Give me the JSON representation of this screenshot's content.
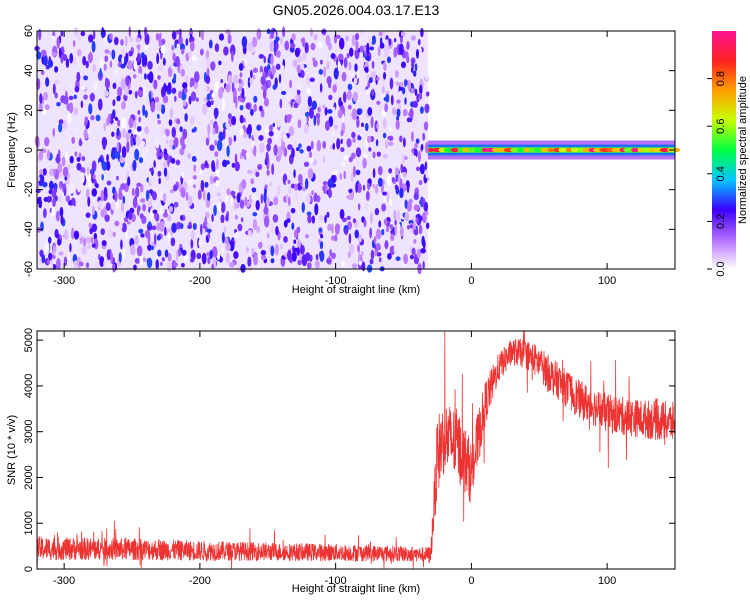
{
  "figure": {
    "title": "GN05.2026.004.03.17.E13"
  },
  "chart_data": [
    {
      "type": "heatmap",
      "title": "GN05.2026.004.03.17.E13",
      "xlabel": "Height of straight line (km)",
      "ylabel": "Frequency (Hz)",
      "xlim": [
        -320,
        150
      ],
      "ylim": [
        -60,
        60
      ],
      "x_ticks": [
        -300,
        -200,
        -100,
        0,
        100
      ],
      "y_ticks": [
        -60,
        -40,
        -20,
        0,
        20,
        40,
        60
      ],
      "colorbar": {
        "label": "Normalized spectral amplitude",
        "range": [
          0,
          1
        ],
        "ticks": [
          0.0,
          0.2,
          0.4,
          0.6,
          0.8
        ],
        "tick_labels": [
          "0.0",
          "0.2",
          "0.4",
          "0.6",
          "0.8"
        ],
        "colors": [
          "#ffffff",
          "#b36bff",
          "#3a00ff",
          "#00c8ff",
          "#00ff40",
          "#c8ff00",
          "#ffa000",
          "#ff2020",
          "#ff1493"
        ]
      },
      "noise_region": {
        "x": [
          -320,
          -32
        ],
        "y": [
          -60,
          60
        ],
        "level": [
          0.0,
          0.3
        ]
      },
      "signal_band": {
        "x": [
          -32,
          150
        ],
        "center_hz": 0,
        "halfwidth_hz": 3,
        "level": [
          0.5,
          1.0
        ]
      }
    },
    {
      "type": "line",
      "xlabel": "Height of straight line (km)",
      "ylabel": "SNR (10 * v/v)",
      "xlim": [
        -320,
        150
      ],
      "ylim": [
        0,
        5200
      ],
      "x_ticks": [
        -300,
        -200,
        -100,
        0,
        100
      ],
      "y_ticks": [
        0,
        1000,
        2000,
        3000,
        4000,
        5000
      ],
      "color": "#ee3333",
      "envelope": {
        "x": [
          -320,
          -250,
          -200,
          -150,
          -100,
          -60,
          -35,
          -30,
          -25,
          -20,
          -10,
          0,
          10,
          20,
          30,
          40,
          50,
          60,
          80,
          100,
          120,
          150
        ],
        "y": [
          450,
          430,
          400,
          380,
          360,
          340,
          320,
          300,
          2500,
          2900,
          2700,
          2100,
          3600,
          4400,
          4750,
          4700,
          4500,
          4200,
          3700,
          3400,
          3300,
          3200
        ],
        "noise_amplitude": [
          260,
          240,
          220,
          200,
          190,
          180,
          160,
          200,
          900,
          800,
          800,
          700,
          500,
          320,
          300,
          320,
          380,
          400,
          420,
          430,
          420,
          450
        ]
      }
    }
  ]
}
